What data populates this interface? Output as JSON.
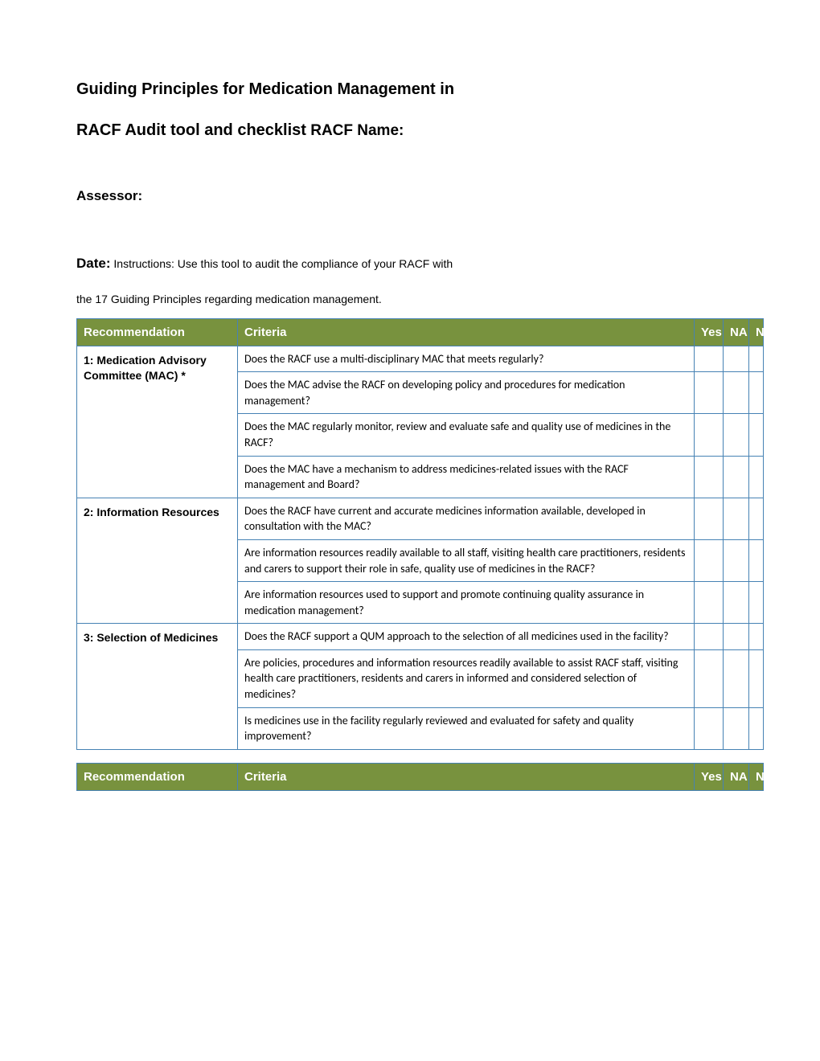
{
  "header": {
    "title1": "Guiding Principles for Medication Management in",
    "title2_bold": "RACF Audit tool and checklist",
    "title2_sub": " RACF Name:",
    "assessor_label": "Assessor:",
    "date_label": "Date:",
    "instructions_1": " Instructions: Use this tool to audit the compliance of your RACF with",
    "instructions_2": "the 17 Guiding Principles regarding medication management."
  },
  "columns": {
    "recommendation": "Recommendation",
    "criteria": "Criteria",
    "yes": "Yes",
    "na": "NA",
    "n": "N"
  },
  "table1": {
    "colors": {
      "header_bg": "#78923e",
      "header_fg": "#ffffff",
      "border": "#4682b4"
    },
    "sections": [
      {
        "recommendation": "1: Medication Advisory Committee (MAC) *",
        "criteria": [
          "Does the RACF use a multi-disciplinary MAC that meets regularly?",
          "Does the MAC advise the RACF on developing policy and procedures for medication management?",
          "Does the MAC regularly monitor, review and evaluate safe and quality use of medicines in the RACF?",
          "Does the MAC have a mechanism to address medicines-related issues with the RACF management and Board?"
        ]
      },
      {
        "recommendation": "2: Information Resources",
        "criteria": [
          "Does the RACF have current and accurate medicines information available, developed in consultation with the MAC?",
          "Are information resources readily available to all staff, visiting health care practitioners, residents and carers to support their role in safe, quality use of medicines in the RACF?",
          "Are information resources used to support and promote continuing quality assurance in medication management?"
        ]
      },
      {
        "recommendation": "3: Selection of Medicines",
        "criteria": [
          "Does the RACF support a QUM approach to the selection of all medicines used in the facility?",
          "Are policies, procedures and information resources readily available to assist RACF staff, visiting health care practitioners, residents and carers in informed and considered selection of medicines?",
          "Is medicines use in the facility regularly reviewed and evaluated for safety and quality improvement?"
        ]
      }
    ]
  }
}
